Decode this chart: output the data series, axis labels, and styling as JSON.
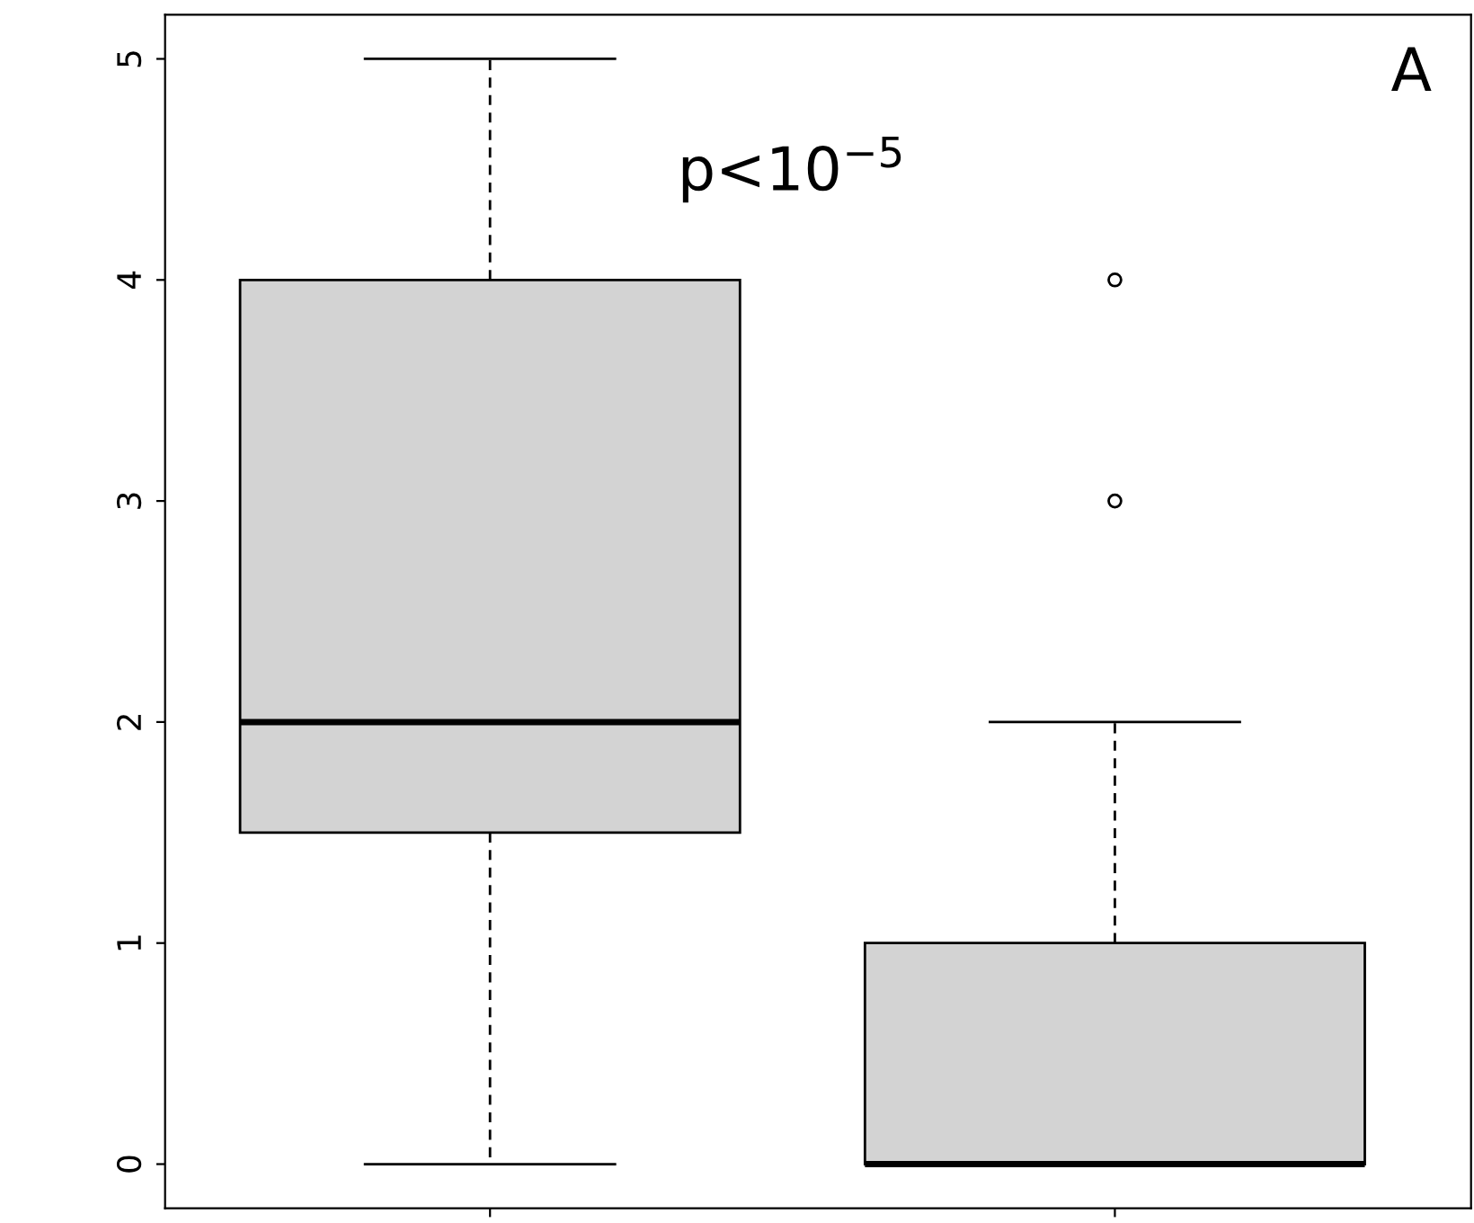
{
  "chart_data": {
    "type": "box",
    "categories": [
      null,
      null
    ],
    "boxes": [
      {
        "low": 0,
        "q1": 1.5,
        "median": 2,
        "q3": 4,
        "high": 5
      },
      {
        "low": 0,
        "q1": 0,
        "median": 0,
        "q3": 1,
        "high": 2,
        "outliers": [
          3,
          4
        ]
      }
    ],
    "color": "#d3d3d3",
    "ylim": [
      -0.2,
      5.2
    ],
    "yticks": [
      0,
      1,
      2,
      3,
      4,
      5
    ],
    "tick_labels": "y",
    "grid": false,
    "legend": false,
    "annotations": [
      "p<10$^{−5}$",
      "A"
    ]
  }
}
